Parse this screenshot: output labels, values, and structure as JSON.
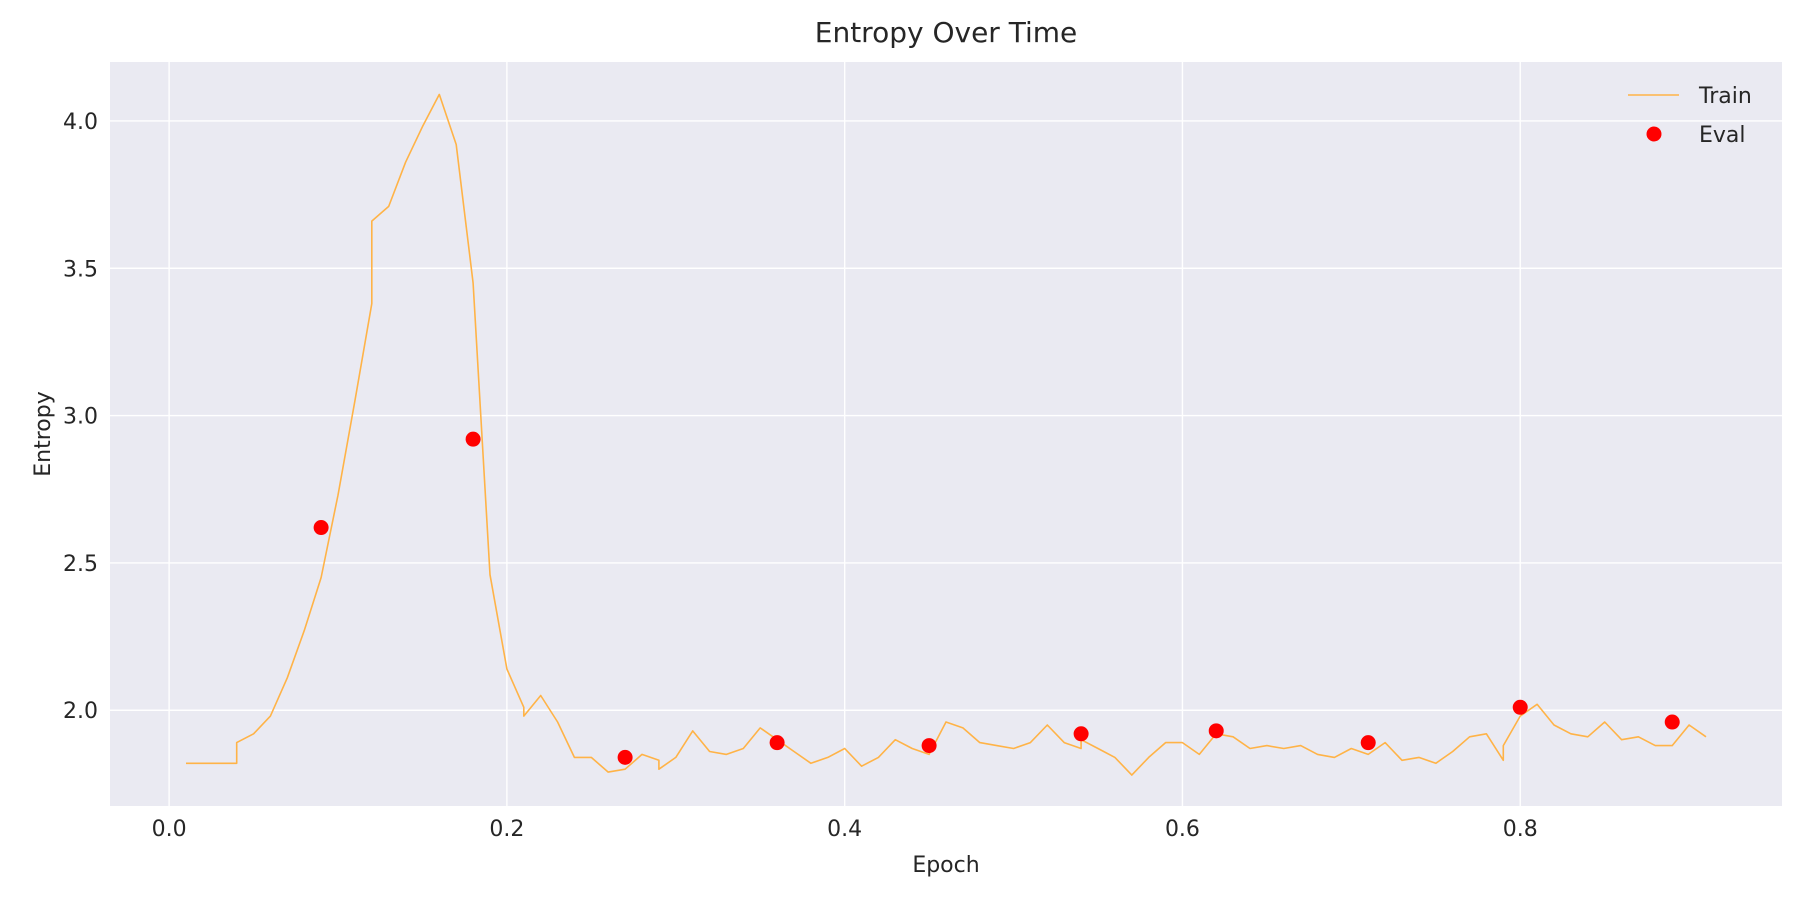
{
  "chart_data": {
    "type": "line",
    "title": "Entropy Over Time",
    "xlabel": "Epoch",
    "ylabel": "Entropy",
    "xlim": [
      -0.035,
      0.955
    ],
    "ylim": [
      1.675,
      4.2
    ],
    "xticks": [
      0.0,
      0.2,
      0.4,
      0.6,
      0.8
    ],
    "xtick_labels": [
      "0.0",
      "0.2",
      "0.4",
      "0.6",
      "0.8"
    ],
    "yticks": [
      2.0,
      2.5,
      3.0,
      3.5,
      4.0
    ],
    "ytick_labels": [
      "2.0",
      "2.5",
      "3.0",
      "3.5",
      "4.0"
    ],
    "grid": true,
    "legend_position": "top-right",
    "series": [
      {
        "name": "Train",
        "kind": "line",
        "color": "#ffb347",
        "x": [
          0.01,
          0.02,
          0.03,
          0.04,
          0.04,
          0.05,
          0.06,
          0.07,
          0.08,
          0.09,
          0.1,
          0.11,
          0.12,
          0.12,
          0.13,
          0.14,
          0.15,
          0.16,
          0.17,
          0.18,
          0.19,
          0.2,
          0.21,
          0.21,
          0.22,
          0.23,
          0.24,
          0.25,
          0.26,
          0.27,
          0.28,
          0.29,
          0.29,
          0.3,
          0.31,
          0.32,
          0.33,
          0.34,
          0.35,
          0.36,
          0.37,
          0.38,
          0.39,
          0.4,
          0.41,
          0.42,
          0.43,
          0.44,
          0.45,
          0.46,
          0.47,
          0.48,
          0.49,
          0.5,
          0.51,
          0.52,
          0.53,
          0.54,
          0.54,
          0.55,
          0.56,
          0.57,
          0.58,
          0.59,
          0.6,
          0.61,
          0.62,
          0.63,
          0.64,
          0.65,
          0.66,
          0.67,
          0.68,
          0.69,
          0.7,
          0.71,
          0.72,
          0.73,
          0.74,
          0.75,
          0.76,
          0.77,
          0.78,
          0.79,
          0.79,
          0.8,
          0.81,
          0.82,
          0.83,
          0.84,
          0.85,
          0.86,
          0.87,
          0.88,
          0.89,
          0.9,
          0.91
        ],
        "y": [
          1.82,
          1.82,
          1.82,
          1.82,
          1.89,
          1.92,
          1.98,
          2.11,
          2.27,
          2.45,
          2.73,
          3.05,
          3.38,
          3.66,
          3.71,
          3.86,
          3.98,
          4.09,
          3.92,
          3.45,
          2.46,
          2.14,
          2.01,
          1.98,
          2.05,
          1.96,
          1.84,
          1.84,
          1.79,
          1.8,
          1.85,
          1.83,
          1.8,
          1.84,
          1.93,
          1.86,
          1.85,
          1.87,
          1.94,
          1.9,
          1.86,
          1.82,
          1.84,
          1.87,
          1.81,
          1.84,
          1.9,
          1.87,
          1.85,
          1.96,
          1.94,
          1.89,
          1.88,
          1.87,
          1.89,
          1.95,
          1.89,
          1.87,
          1.9,
          1.87,
          1.84,
          1.78,
          1.84,
          1.89,
          1.89,
          1.85,
          1.92,
          1.91,
          1.87,
          1.88,
          1.87,
          1.88,
          1.85,
          1.84,
          1.87,
          1.85,
          1.89,
          1.83,
          1.84,
          1.82,
          1.86,
          1.91,
          1.92,
          1.83,
          1.88,
          1.98,
          2.02,
          1.95,
          1.92,
          1.91,
          1.96,
          1.9,
          1.91,
          1.88,
          1.88,
          1.95,
          1.91
        ]
      },
      {
        "name": "Eval",
        "kind": "scatter",
        "color": "#ff0000",
        "x": [
          0.09,
          0.18,
          0.27,
          0.36,
          0.45,
          0.54,
          0.62,
          0.71,
          0.8,
          0.89
        ],
        "y": [
          2.62,
          2.92,
          1.84,
          1.89,
          1.88,
          1.92,
          1.93,
          1.89,
          2.01,
          1.96
        ]
      }
    ],
    "colors": {
      "plot_background": "#eaeaf2",
      "grid": "#ffffff",
      "text": "#262626"
    }
  }
}
